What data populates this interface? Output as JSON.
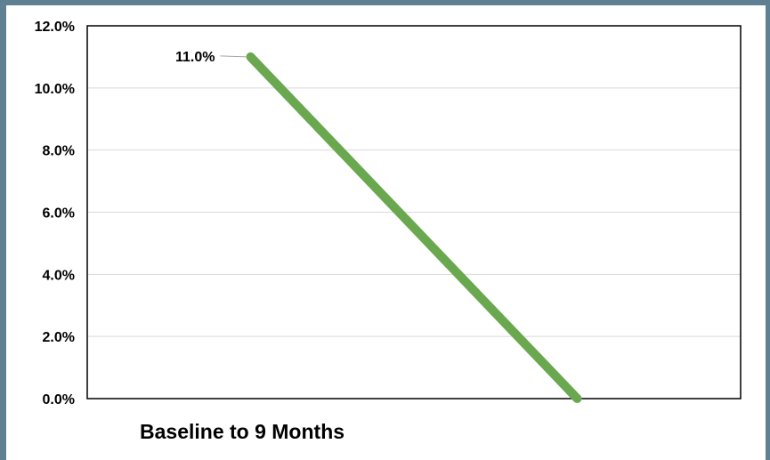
{
  "chart_data": {
    "type": "line",
    "title": "",
    "xlabel": "",
    "ylabel": "",
    "caption": "Baseline to 9 Months",
    "x": [
      1,
      2
    ],
    "xlim": [
      0.5,
      2.5
    ],
    "ylim": [
      0,
      12
    ],
    "y_ticks": [
      {
        "value": 0,
        "label": "0.0%"
      },
      {
        "value": 2,
        "label": "2.0%"
      },
      {
        "value": 4,
        "label": "4.0%"
      },
      {
        "value": 6,
        "label": "6.0%"
      },
      {
        "value": 8,
        "label": "8.0%"
      },
      {
        "value": 10,
        "label": "10.0%"
      },
      {
        "value": 12,
        "label": "12.0%"
      }
    ],
    "grid": true,
    "legend": "none",
    "series": [
      {
        "values": [
          11.0,
          0.0
        ],
        "color": "#6aa84f",
        "data_labels": [
          "11.0%",
          ""
        ]
      }
    ]
  }
}
